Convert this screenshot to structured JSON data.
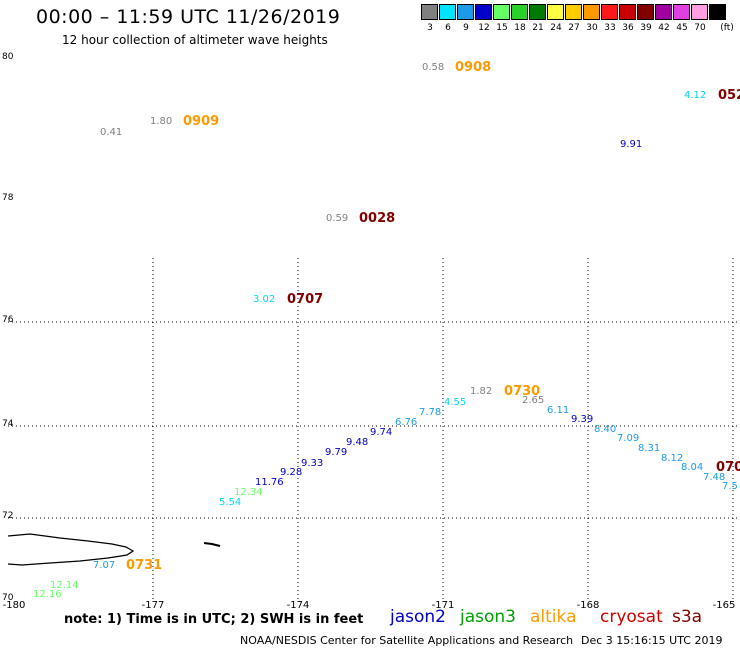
{
  "header": {
    "title": "00:00 – 11:59 UTC 11/26/2019",
    "subtitle": "12 hour collection of altimeter wave heights"
  },
  "color_scale": {
    "unit": "(ft)",
    "bins": [
      {
        "label": "3",
        "color": "#808080"
      },
      {
        "label": "6",
        "color": "#00e5ff"
      },
      {
        "label": "9",
        "color": "#1e9be8"
      },
      {
        "label": "12",
        "color": "#0000c8"
      },
      {
        "label": "15",
        "color": "#66ff66"
      },
      {
        "label": "18",
        "color": "#2bd12b"
      },
      {
        "label": "21",
        "color": "#007a00"
      },
      {
        "label": "24",
        "color": "#ffff44"
      },
      {
        "label": "27",
        "color": "#ffcc00"
      },
      {
        "label": "30",
        "color": "#ff9900"
      },
      {
        "label": "33",
        "color": "#ff1a1a"
      },
      {
        "label": "36",
        "color": "#c80000"
      },
      {
        "label": "39",
        "color": "#800000"
      },
      {
        "label": "42",
        "color": "#a0009f"
      },
      {
        "label": "45",
        "color": "#e040e0"
      },
      {
        "label": "70",
        "color": "#ff9ee0"
      },
      {
        "label": "",
        "color": "#000000"
      }
    ]
  },
  "map": {
    "lat_labels": [
      "80",
      "78",
      "76",
      "74",
      "72",
      "70"
    ],
    "lon_labels": [
      "-180",
      "-177",
      "-174",
      "-171",
      "-168",
      "-165"
    ],
    "pass_times": [
      {
        "text": "0908",
        "color": "#ff9900"
      },
      {
        "text": "0909",
        "color": "#ff9900"
      },
      {
        "text": "052",
        "color": "#800000"
      },
      {
        "text": "0028",
        "color": "#800000"
      },
      {
        "text": "0707",
        "color": "#800000"
      },
      {
        "text": "0730",
        "color": "#ff9900"
      },
      {
        "text": "070",
        "color": "#800000"
      },
      {
        "text": "0731",
        "color": "#ff9900"
      }
    ],
    "observations": [
      {
        "text": "0.58",
        "color": "#808080"
      },
      {
        "text": "4.12",
        "color": "#00d8f0"
      },
      {
        "text": "1.80",
        "color": "#808080"
      },
      {
        "text": "0.41",
        "color": "#808080"
      },
      {
        "text": "9.91",
        "color": "#0000c8"
      },
      {
        "text": "0.59",
        "color": "#808080"
      },
      {
        "text": "3.02",
        "color": "#00d8f0"
      },
      {
        "text": "1.82",
        "color": "#808080"
      },
      {
        "text": "2.65",
        "color": "#808080"
      },
      {
        "text": "4.55",
        "color": "#00d8f0"
      },
      {
        "text": "7.78",
        "color": "#1e9be8"
      },
      {
        "text": "6.11",
        "color": "#1e9be8"
      },
      {
        "text": "6.76",
        "color": "#1e9be8"
      },
      {
        "text": "9.39",
        "color": "#0000c8"
      },
      {
        "text": "9.74",
        "color": "#0000c8"
      },
      {
        "text": "8.40",
        "color": "#1e9be8"
      },
      {
        "text": "9.48",
        "color": "#0000c8"
      },
      {
        "text": "7.09",
        "color": "#1e9be8"
      },
      {
        "text": "9.79",
        "color": "#0000c8"
      },
      {
        "text": "8.31",
        "color": "#1e9be8"
      },
      {
        "text": "9.33",
        "color": "#0000c8"
      },
      {
        "text": "8.12",
        "color": "#1e9be8"
      },
      {
        "text": "9.28",
        "color": "#0000c8"
      },
      {
        "text": "8.04",
        "color": "#1e9be8"
      },
      {
        "text": "11.76",
        "color": "#0000c8"
      },
      {
        "text": "7.48",
        "color": "#1e9be8"
      },
      {
        "text": "12.34",
        "color": "#66ff66"
      },
      {
        "text": "7.5",
        "color": "#1e9be8"
      },
      {
        "text": "5.54",
        "color": "#00d8f0"
      },
      {
        "text": "7.07",
        "color": "#1e9be8"
      },
      {
        "text": "12.14",
        "color": "#66ff66"
      },
      {
        "text": "12.16",
        "color": "#66ff66"
      }
    ]
  },
  "footer": {
    "note": "note:  1) Time is in UTC;  2) SWH is in feet",
    "legend": [
      {
        "label": "jason2",
        "color": "#0000c8"
      },
      {
        "label": "jason3",
        "color": "#00a000"
      },
      {
        "label": "altika",
        "color": "#ff9900"
      },
      {
        "label": "cryosat",
        "color": "#d00000"
      },
      {
        "label": "s3a",
        "color": "#800000"
      }
    ],
    "credit": "NOAA/NESDIS Center for Satellite Applications and Research",
    "timestamp": "Dec  3 15:16:15 UTC 2019"
  }
}
